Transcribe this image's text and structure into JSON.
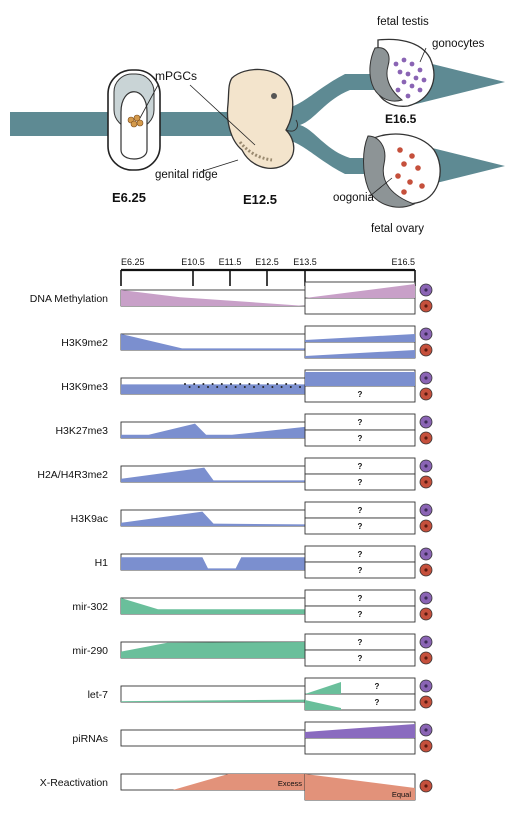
{
  "top": {
    "stage_a": "E6.25",
    "stage_b": "E12.5",
    "stage_c": "E16.5",
    "mpgcs": "mPGCs",
    "genital_ridge": "genital ridge",
    "fetal_testis": "fetal testis",
    "gonocytes": "gonocytes",
    "oogonia": "oogonia",
    "fetal_ovary": "fetal ovary"
  },
  "timeline": {
    "ticks": [
      "E6.25",
      "E10.5",
      "E11.5",
      "E12.5",
      "E13.5",
      "E16.5"
    ]
  },
  "rows": [
    {
      "label": "DNA Methylation",
      "color": "#c8a0c8",
      "top_note": "",
      "bottom_note": ""
    },
    {
      "label": "H3K9me2",
      "color": "#7b8fcf",
      "top_note": "",
      "bottom_note": ""
    },
    {
      "label": "H3K9me3",
      "color": "#7b8fcf",
      "top_note": "",
      "bottom_note": "?"
    },
    {
      "label": "H3K27me3",
      "color": "#7b8fcf",
      "top_note": "?",
      "bottom_note": "?"
    },
    {
      "label": "H2A/H4R3me2",
      "color": "#7b8fcf",
      "top_note": "?",
      "bottom_note": "?"
    },
    {
      "label": "H3K9ac",
      "color": "#7b8fcf",
      "top_note": "?",
      "bottom_note": "?"
    },
    {
      "label": "H1",
      "color": "#7b8fcf",
      "top_note": "?",
      "bottom_note": "?"
    },
    {
      "label": "mir-302",
      "color": "#6abf9b",
      "top_note": "?",
      "bottom_note": "?"
    },
    {
      "label": "mir-290",
      "color": "#6abf9b",
      "top_note": "?",
      "bottom_note": "?"
    },
    {
      "label": "let-7",
      "color": "#6abf9b",
      "top_note": "?",
      "bottom_note": "?"
    },
    {
      "label": "piRNAs",
      "color": "#8a6bbf",
      "top_note": "",
      "bottom_note": ""
    },
    {
      "label": "X-Reactivation",
      "color": "#e2927a",
      "top_note": "",
      "bottom_note": ""
    }
  ],
  "xreact": {
    "excess": "Excess",
    "equal": "Equal"
  },
  "colors": {
    "arrow": "#5e8a93",
    "gonocyte_dot": "#8a64b4",
    "oogonia_dot": "#c5503c",
    "embryo": "#f3e4cc"
  }
}
